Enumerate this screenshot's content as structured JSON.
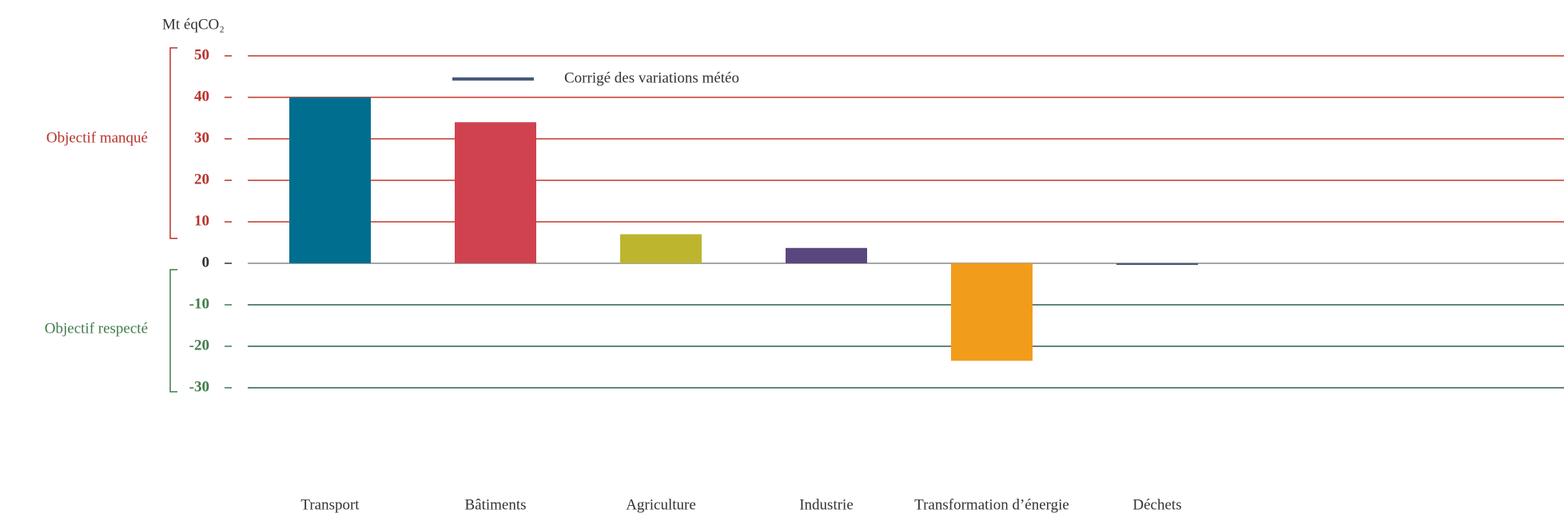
{
  "chart_data": {
    "type": "bar",
    "ylabel": "Mt éqCO₂",
    "categories": [
      "Transport",
      "Bâtiments",
      "Agriculture",
      "Industrie",
      "Transformation d’énergie",
      "Déchets"
    ],
    "values": [
      40,
      34,
      7,
      3.7,
      -23.5,
      -0.4
    ],
    "colors": [
      "#006e8f",
      "#d0424f",
      "#bdb52e",
      "#5a4780",
      "#f29c1b",
      "#4a5a7a"
    ],
    "ylim": [
      -30,
      50
    ],
    "yticks": [
      -30,
      -20,
      -10,
      0,
      10,
      20,
      30,
      40,
      50
    ],
    "grid": true,
    "legend": {
      "label": "Corrigé des variations météo",
      "color": "#4a5a7a"
    },
    "annotations": [
      {
        "text": "Objectif manqué",
        "color": "#b8332c"
      },
      {
        "text": "Objectif respecté",
        "color": "#3f7d4a"
      }
    ]
  }
}
